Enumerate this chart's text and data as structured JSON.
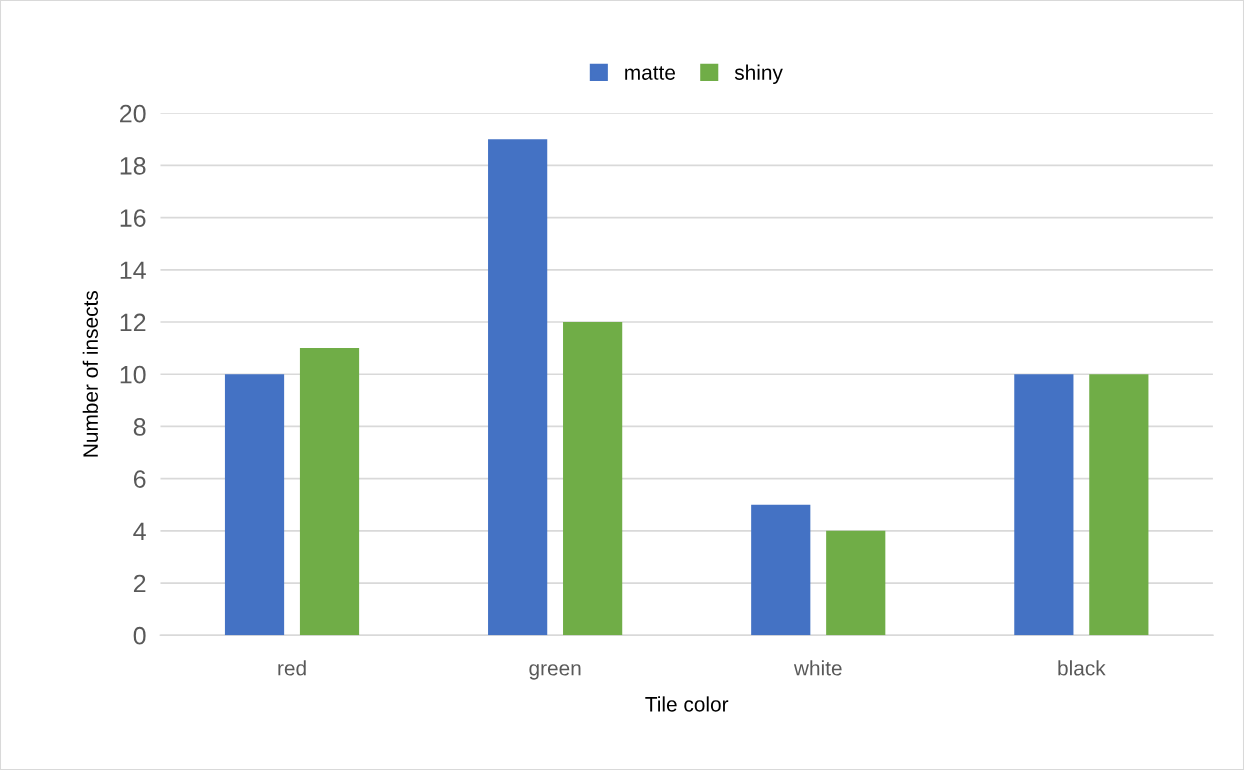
{
  "chart_data": {
    "type": "bar",
    "xlabel": "Tile color",
    "ylabel": "Number of insects",
    "categories": [
      "red",
      "green",
      "white",
      "black"
    ],
    "series": [
      {
        "name": "matte",
        "color": "#4472c4",
        "values": [
          10,
          19,
          5,
          10
        ]
      },
      {
        "name": "shiny",
        "color": "#70ad47",
        "values": [
          11,
          12,
          4,
          10
        ]
      }
    ],
    "ylim": [
      0,
      20
    ],
    "yticks": [
      0,
      2,
      4,
      6,
      8,
      10,
      12,
      14,
      16,
      18,
      20
    ],
    "grid": "y",
    "legend": "top"
  }
}
